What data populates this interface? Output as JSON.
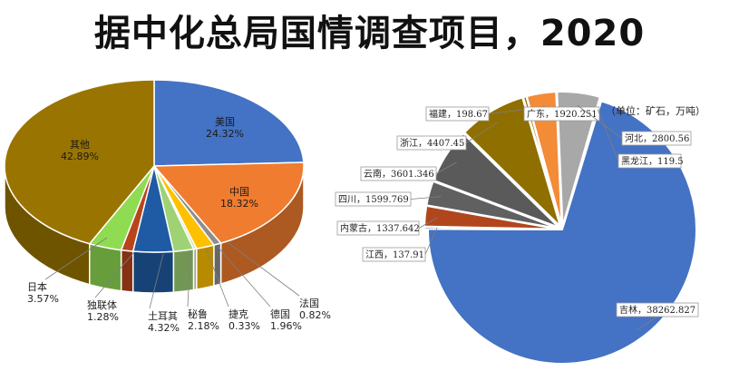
{
  "title": "据中化总局国情调查项目，2020",
  "colors": {
    "美国": "#4472c4",
    "中国": "#f07c2f",
    "法国": "#8e8e8e",
    "德国": "#ffc000",
    "捷克": "#d7e7c2",
    "秘鲁": "#9fd275",
    "土耳其": "#1f5ba4",
    "独联体": "#b8441c",
    "日本": "#8fdb52",
    "其他": "#9a7400",
    "吉林": "#4472c4",
    "江西": "#2b5f9f",
    "内蒙古": "#b1461d",
    "四川": "#606060",
    "云南": "#5a5a5a",
    "浙江": "#8f6f00",
    "福建": "#8c6d00",
    "广东": "#f38b37",
    "河北": "#a8a8a8",
    "黑龙江": "#f5c229"
  },
  "chart_data": [
    {
      "type": "pie",
      "title": "",
      "slices": [
        {
          "label": "美国",
          "value": 24.32,
          "text": "24.32%"
        },
        {
          "label": "中国",
          "value": 18.32,
          "text": "18.32%"
        },
        {
          "label": "法国",
          "value": 0.82,
          "text": "0.82%"
        },
        {
          "label": "德国",
          "value": 1.96,
          "text": "1.96%"
        },
        {
          "label": "捷克",
          "value": 0.33,
          "text": "0.33%"
        },
        {
          "label": "秘鲁",
          "value": 2.18,
          "text": "2.18%"
        },
        {
          "label": "土耳其",
          "value": 4.32,
          "text": "4.32%"
        },
        {
          "label": "独联体",
          "value": 1.28,
          "text": "1.28%"
        },
        {
          "label": "日本",
          "value": 3.57,
          "text": "3.57%"
        },
        {
          "label": "其他",
          "value": 42.89,
          "text": "42.89%"
        }
      ]
    },
    {
      "type": "pie",
      "title": "",
      "unit": "（单位：矿石，万吨）",
      "slices": [
        {
          "label": "吉林",
          "value": 38262.827,
          "text": "吉林，38262.827"
        },
        {
          "label": "江西",
          "value": 137.91,
          "text": "江西，137.91"
        },
        {
          "label": "内蒙古",
          "value": 1337.642,
          "text": "内蒙古，1337.642"
        },
        {
          "label": "四川",
          "value": 1599.769,
          "text": "四川，1599.769"
        },
        {
          "label": "云南",
          "value": 3601.346,
          "text": "云南，3601.346"
        },
        {
          "label": "浙江",
          "value": 4407.45,
          "text": "浙江，4407.45"
        },
        {
          "label": "福建",
          "value": 198.67,
          "text": "福建，198.67"
        },
        {
          "label": "广东",
          "value": 1920.251,
          "text": "广东，1920.251"
        },
        {
          "label": "河北",
          "value": 2800.56,
          "text": "河北，2800.56"
        },
        {
          "label": "黑龙江",
          "value": 119.5,
          "text": "黑龙江，119.5"
        }
      ]
    }
  ]
}
